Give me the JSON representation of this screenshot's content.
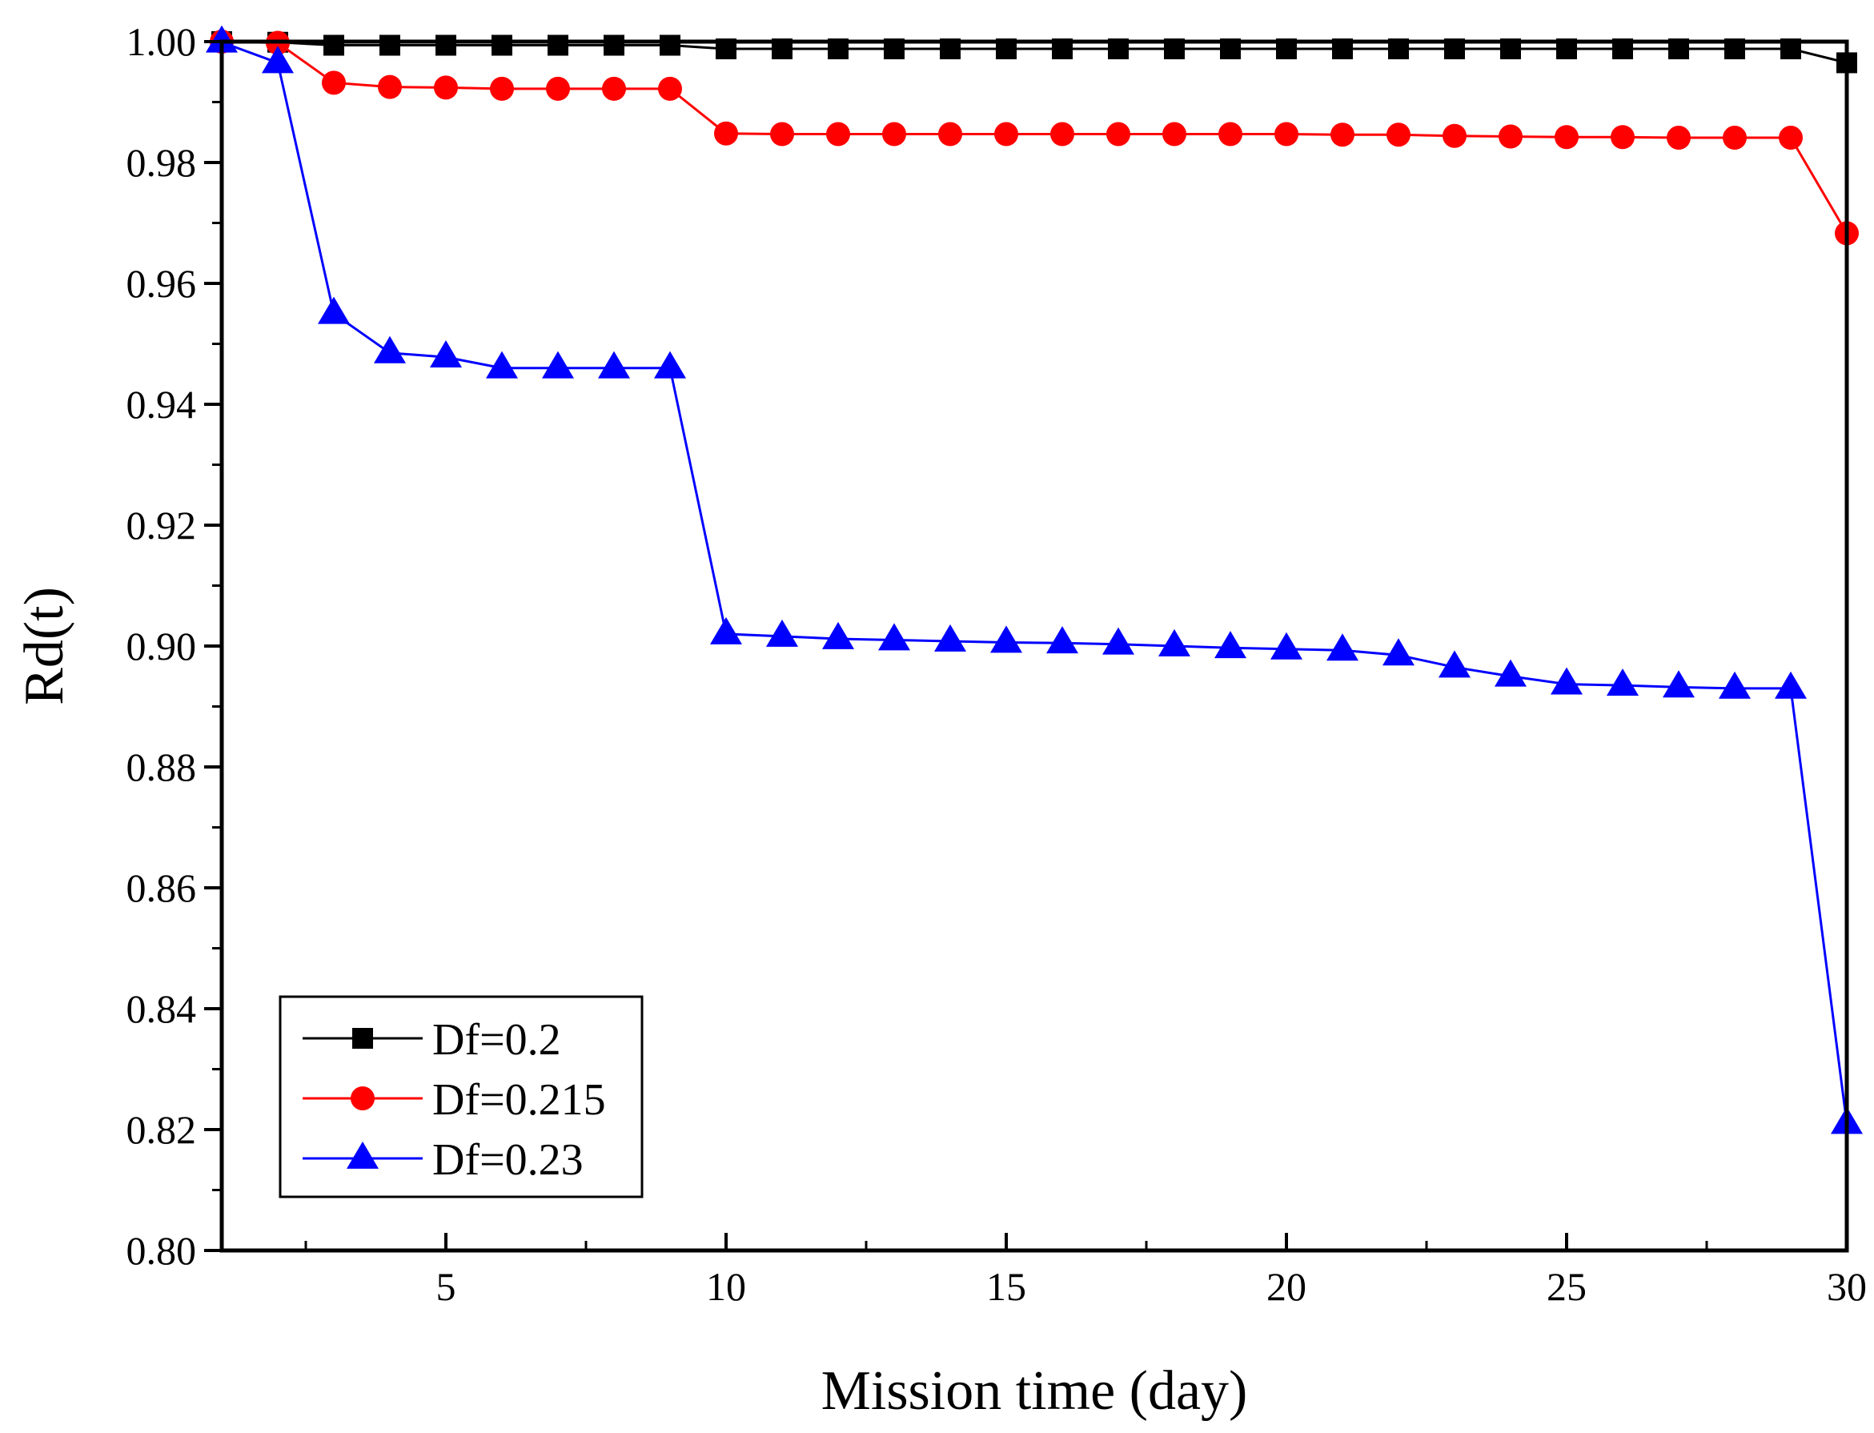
{
  "chart_data": {
    "type": "line",
    "title": "",
    "xlabel": "Mission time (day)",
    "ylabel": "Rd(t)",
    "xlim": [
      1,
      30
    ],
    "ylim": [
      0.8,
      1.0
    ],
    "x_ticks": [
      5,
      10,
      15,
      20,
      25,
      30
    ],
    "x_tick_labels": [
      "5",
      "10",
      "15",
      "20",
      "25",
      "30"
    ],
    "y_ticks": [
      0.8,
      0.82,
      0.84,
      0.86,
      0.88,
      0.9,
      0.92,
      0.94,
      0.96,
      0.98,
      1.0
    ],
    "y_tick_labels": [
      "0.80",
      "0.82",
      "0.84",
      "0.86",
      "0.88",
      "0.90",
      "0.92",
      "0.94",
      "0.96",
      "0.98",
      "1.00"
    ],
    "grid": false,
    "legend_position": "bottom-left",
    "x": [
      1,
      2,
      3,
      4,
      5,
      6,
      7,
      8,
      9,
      10,
      11,
      12,
      13,
      14,
      15,
      16,
      17,
      18,
      19,
      20,
      21,
      22,
      23,
      24,
      25,
      26,
      27,
      28,
      29,
      30
    ],
    "series": [
      {
        "name": "Df=0.2",
        "color": "#000000",
        "marker": "square",
        "values": [
          1.0,
          0.9999,
          0.9994,
          0.9994,
          0.9994,
          0.9994,
          0.9994,
          0.9994,
          0.9994,
          0.9988,
          0.9988,
          0.9988,
          0.9988,
          0.9988,
          0.9988,
          0.9988,
          0.9988,
          0.9988,
          0.9988,
          0.9988,
          0.9988,
          0.9988,
          0.9988,
          0.9988,
          0.9988,
          0.9988,
          0.9988,
          0.9988,
          0.9988,
          0.9965
        ]
      },
      {
        "name": "Df=0.215",
        "color": "#ff0000",
        "marker": "circle",
        "values": [
          1.0,
          0.9998,
          0.9932,
          0.9925,
          0.9924,
          0.9922,
          0.9922,
          0.9922,
          0.9922,
          0.9848,
          0.9847,
          0.9847,
          0.9847,
          0.9847,
          0.9847,
          0.9847,
          0.9847,
          0.9847,
          0.9847,
          0.9847,
          0.9846,
          0.9846,
          0.9844,
          0.9843,
          0.9842,
          0.9842,
          0.9841,
          0.9841,
          0.9841,
          0.9683
        ]
      },
      {
        "name": "Df=0.23",
        "color": "#0000ff",
        "marker": "triangle",
        "values": [
          0.9999,
          0.9965,
          0.955,
          0.9485,
          0.9478,
          0.946,
          0.946,
          0.946,
          0.946,
          0.902,
          0.9016,
          0.9012,
          0.901,
          0.9008,
          0.9006,
          0.9005,
          0.9003,
          0.9,
          0.8997,
          0.8995,
          0.8993,
          0.8985,
          0.8965,
          0.895,
          0.8937,
          0.8935,
          0.8932,
          0.893,
          0.893,
          0.821
        ]
      }
    ]
  }
}
